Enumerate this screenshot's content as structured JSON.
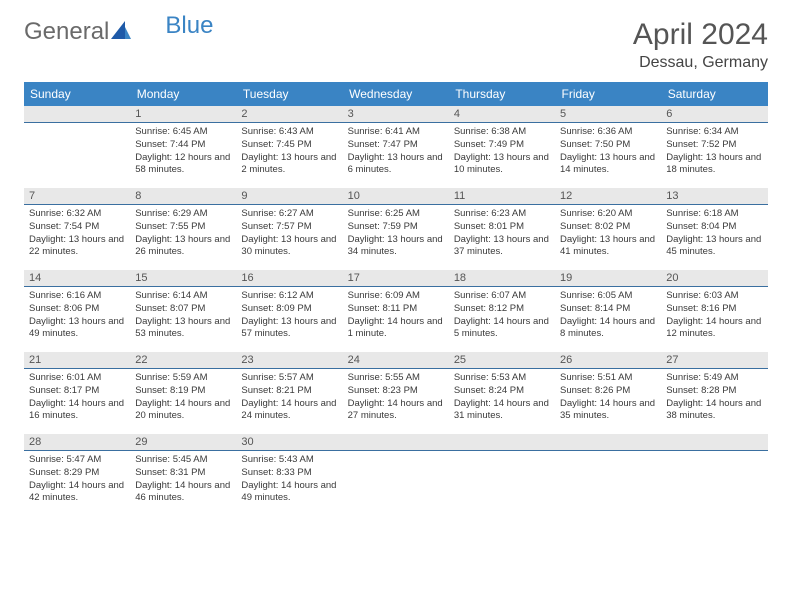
{
  "brand": {
    "part1": "General",
    "part2": "Blue"
  },
  "title": "April 2024",
  "location": "Dessau, Germany",
  "colors": {
    "header_bg": "#3a84c4",
    "header_text": "#ffffff",
    "daybar_bg": "#e8e8e8",
    "daybar_border": "#3a6fa0",
    "body_text": "#3a3a3a",
    "title_text": "#555555"
  },
  "weekdays": [
    "Sunday",
    "Monday",
    "Tuesday",
    "Wednesday",
    "Thursday",
    "Friday",
    "Saturday"
  ],
  "layout": {
    "first_weekday_index": 1,
    "days_in_month": 30,
    "weeks": 5
  },
  "days": {
    "1": {
      "sunrise": "6:45 AM",
      "sunset": "7:44 PM",
      "daylight": "12 hours and 58 minutes."
    },
    "2": {
      "sunrise": "6:43 AM",
      "sunset": "7:45 PM",
      "daylight": "13 hours and 2 minutes."
    },
    "3": {
      "sunrise": "6:41 AM",
      "sunset": "7:47 PM",
      "daylight": "13 hours and 6 minutes."
    },
    "4": {
      "sunrise": "6:38 AM",
      "sunset": "7:49 PM",
      "daylight": "13 hours and 10 minutes."
    },
    "5": {
      "sunrise": "6:36 AM",
      "sunset": "7:50 PM",
      "daylight": "13 hours and 14 minutes."
    },
    "6": {
      "sunrise": "6:34 AM",
      "sunset": "7:52 PM",
      "daylight": "13 hours and 18 minutes."
    },
    "7": {
      "sunrise": "6:32 AM",
      "sunset": "7:54 PM",
      "daylight": "13 hours and 22 minutes."
    },
    "8": {
      "sunrise": "6:29 AM",
      "sunset": "7:55 PM",
      "daylight": "13 hours and 26 minutes."
    },
    "9": {
      "sunrise": "6:27 AM",
      "sunset": "7:57 PM",
      "daylight": "13 hours and 30 minutes."
    },
    "10": {
      "sunrise": "6:25 AM",
      "sunset": "7:59 PM",
      "daylight": "13 hours and 34 minutes."
    },
    "11": {
      "sunrise": "6:23 AM",
      "sunset": "8:01 PM",
      "daylight": "13 hours and 37 minutes."
    },
    "12": {
      "sunrise": "6:20 AM",
      "sunset": "8:02 PM",
      "daylight": "13 hours and 41 minutes."
    },
    "13": {
      "sunrise": "6:18 AM",
      "sunset": "8:04 PM",
      "daylight": "13 hours and 45 minutes."
    },
    "14": {
      "sunrise": "6:16 AM",
      "sunset": "8:06 PM",
      "daylight": "13 hours and 49 minutes."
    },
    "15": {
      "sunrise": "6:14 AM",
      "sunset": "8:07 PM",
      "daylight": "13 hours and 53 minutes."
    },
    "16": {
      "sunrise": "6:12 AM",
      "sunset": "8:09 PM",
      "daylight": "13 hours and 57 minutes."
    },
    "17": {
      "sunrise": "6:09 AM",
      "sunset": "8:11 PM",
      "daylight": "14 hours and 1 minute."
    },
    "18": {
      "sunrise": "6:07 AM",
      "sunset": "8:12 PM",
      "daylight": "14 hours and 5 minutes."
    },
    "19": {
      "sunrise": "6:05 AM",
      "sunset": "8:14 PM",
      "daylight": "14 hours and 8 minutes."
    },
    "20": {
      "sunrise": "6:03 AM",
      "sunset": "8:16 PM",
      "daylight": "14 hours and 12 minutes."
    },
    "21": {
      "sunrise": "6:01 AM",
      "sunset": "8:17 PM",
      "daylight": "14 hours and 16 minutes."
    },
    "22": {
      "sunrise": "5:59 AM",
      "sunset": "8:19 PM",
      "daylight": "14 hours and 20 minutes."
    },
    "23": {
      "sunrise": "5:57 AM",
      "sunset": "8:21 PM",
      "daylight": "14 hours and 24 minutes."
    },
    "24": {
      "sunrise": "5:55 AM",
      "sunset": "8:23 PM",
      "daylight": "14 hours and 27 minutes."
    },
    "25": {
      "sunrise": "5:53 AM",
      "sunset": "8:24 PM",
      "daylight": "14 hours and 31 minutes."
    },
    "26": {
      "sunrise": "5:51 AM",
      "sunset": "8:26 PM",
      "daylight": "14 hours and 35 minutes."
    },
    "27": {
      "sunrise": "5:49 AM",
      "sunset": "8:28 PM",
      "daylight": "14 hours and 38 minutes."
    },
    "28": {
      "sunrise": "5:47 AM",
      "sunset": "8:29 PM",
      "daylight": "14 hours and 42 minutes."
    },
    "29": {
      "sunrise": "5:45 AM",
      "sunset": "8:31 PM",
      "daylight": "14 hours and 46 minutes."
    },
    "30": {
      "sunrise": "5:43 AM",
      "sunset": "8:33 PM",
      "daylight": "14 hours and 49 minutes."
    }
  },
  "labels": {
    "sunrise": "Sunrise:",
    "sunset": "Sunset:",
    "daylight": "Daylight:"
  }
}
